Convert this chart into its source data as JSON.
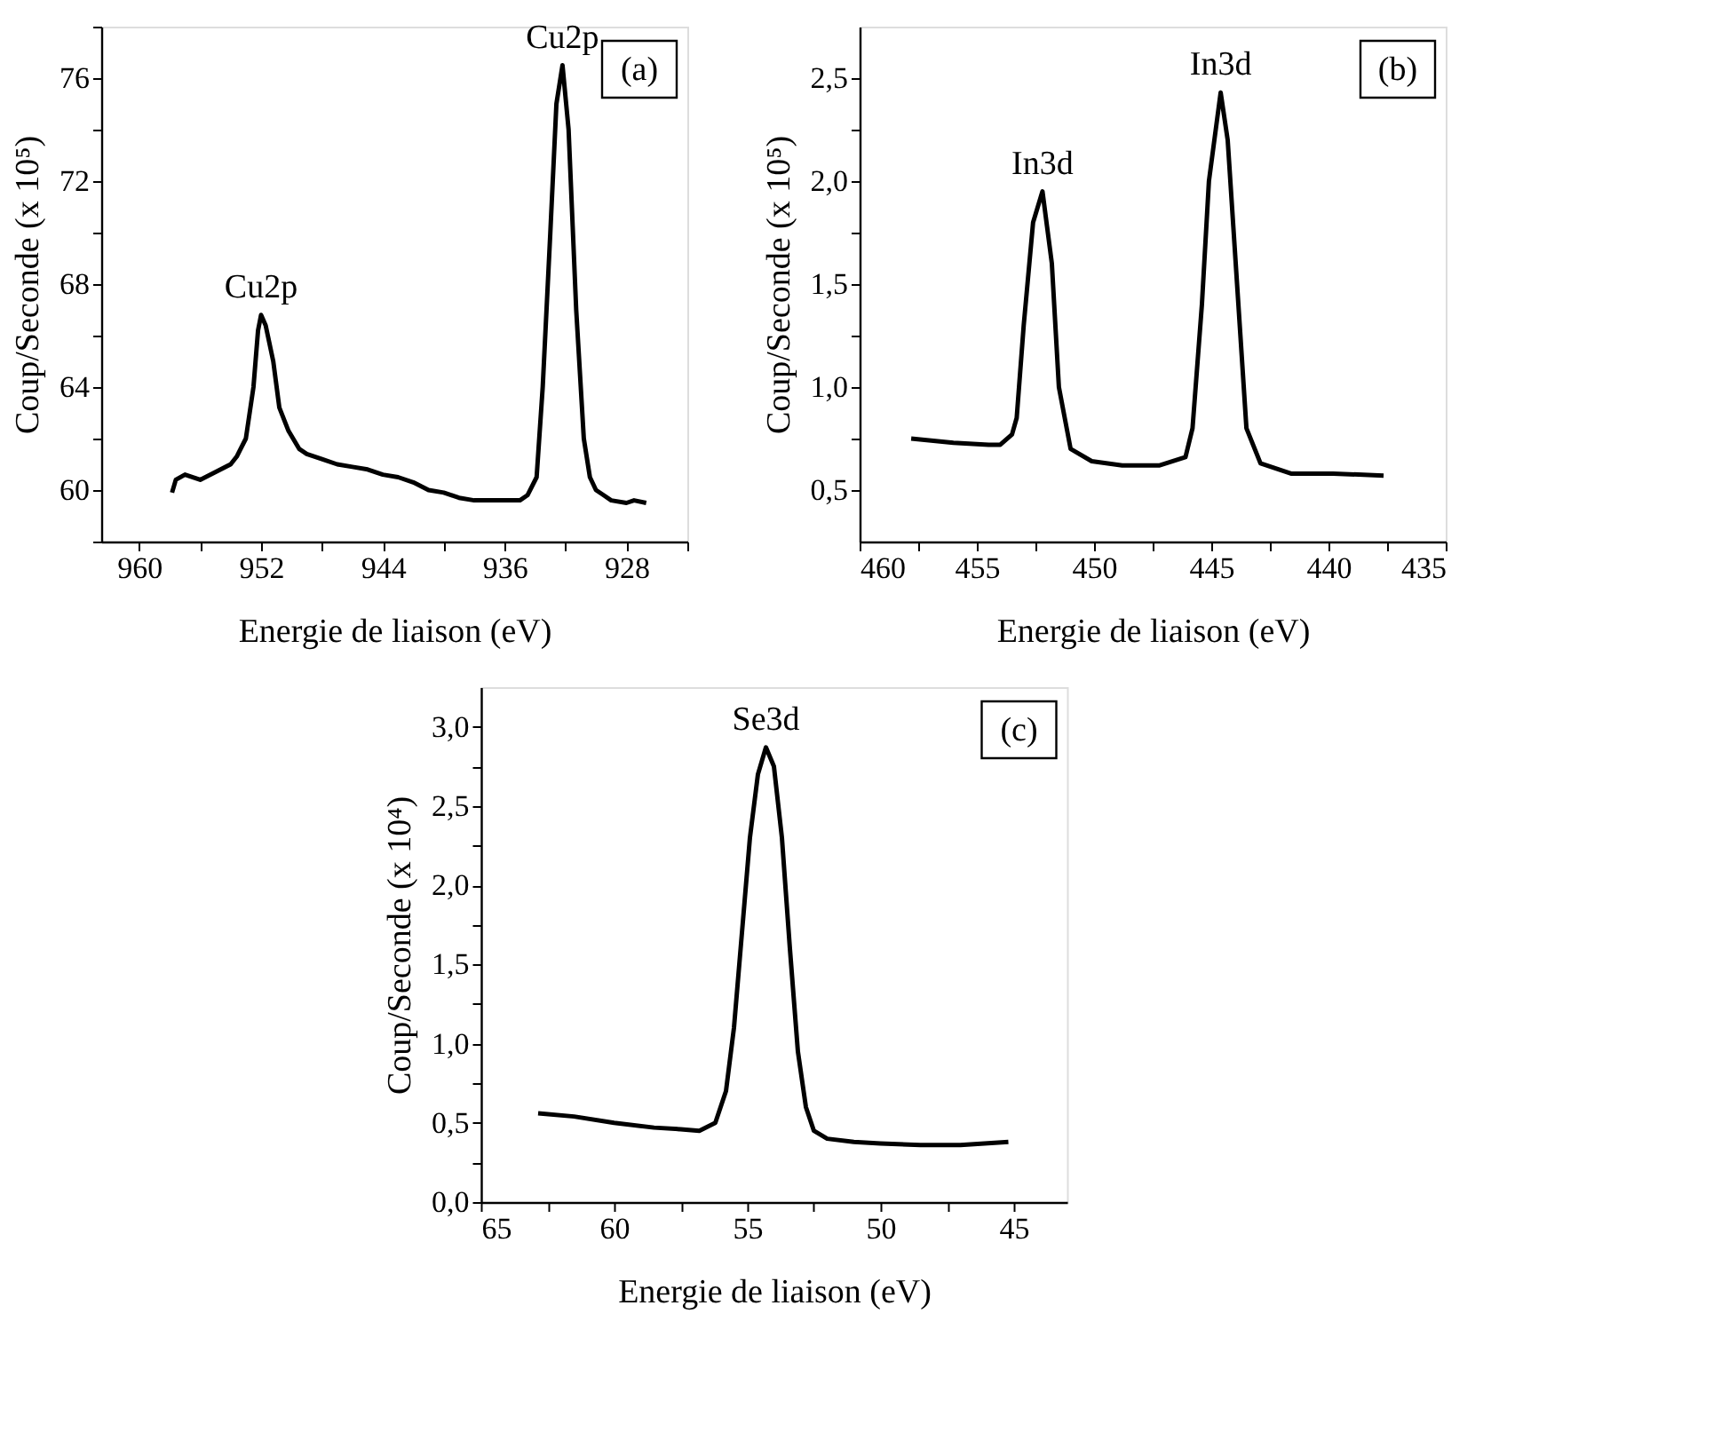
{
  "chart_data": [
    {
      "type": "line",
      "xlabel": "Energie de liaison (eV)",
      "ylabel": "Coup/Seconde (x 10⁵)",
      "xlim": [
        962.5,
        924
      ],
      "ylim": [
        58,
        78
      ],
      "xticks": [
        960,
        {
          "value": 956,
          "label": null
        },
        952,
        {
          "value": 948,
          "label": null
        },
        944,
        {
          "value": 940,
          "label": null
        },
        936,
        {
          "value": 932,
          "label": null
        },
        928,
        {
          "value": 924,
          "label": null
        }
      ],
      "yticks": [
        {
          "value": 58,
          "label": null
        },
        60,
        {
          "value": 62,
          "label": null
        },
        64,
        {
          "value": 66,
          "label": null
        },
        68,
        {
          "value": 70,
          "label": null
        },
        72,
        {
          "value": 74,
          "label": null
        },
        76,
        {
          "value": 78,
          "label": null
        }
      ],
      "grid": false,
      "legend": false,
      "marker": "none",
      "line_style": "solid",
      "series": [
        {
          "color": "#000000",
          "x": [
            957.85,
            957.6,
            957,
            956,
            955,
            954,
            953.6,
            953,
            952.5,
            952.2,
            952.0,
            951.7,
            951.2,
            950.8,
            950.2,
            949.5,
            949,
            948,
            947,
            946,
            945,
            944,
            943,
            942,
            941,
            940,
            939,
            938,
            937,
            936,
            935,
            934.5,
            933.9,
            933.5,
            933.0,
            932.6,
            932.2,
            931.8,
            931.3,
            930.8,
            930.4,
            930,
            929.5,
            929,
            928,
            927.5,
            926.7
          ],
          "values": [
            59.9,
            60.4,
            60.6,
            60.4,
            60.7,
            61.0,
            61.3,
            62.0,
            64.0,
            66.2,
            66.8,
            66.4,
            65.0,
            63.2,
            62.3,
            61.6,
            61.4,
            61.2,
            61.0,
            60.9,
            60.8,
            60.6,
            60.5,
            60.3,
            60.0,
            59.9,
            59.7,
            59.6,
            59.6,
            59.6,
            59.6,
            59.8,
            60.5,
            64.0,
            70.0,
            75.0,
            76.5,
            74.0,
            67.0,
            62.0,
            60.5,
            60.0,
            59.8,
            59.6,
            59.5,
            59.6,
            59.5
          ]
        }
      ],
      "annotations": [
        {
          "text": "Cu2p",
          "x": 952.0,
          "y": 66.8
        },
        {
          "text": "Cu2p",
          "x": 932.2,
          "y": 76.5
        },
        "(a)"
      ]
    },
    {
      "type": "line",
      "xlabel": "Energie de liaison (eV)",
      "ylabel": "Coup/Seconde (x 10⁵)",
      "xlim": [
        460,
        435
      ],
      "ylim": [
        0.25,
        2.75
      ],
      "xticks": [
        460,
        {
          "value": 457.5,
          "label": null
        },
        455,
        {
          "value": 452.5,
          "label": null
        },
        450,
        {
          "value": 447.5,
          "label": null
        },
        445,
        {
          "value": 442.5,
          "label": null
        },
        440,
        {
          "value": 437.5,
          "label": null
        },
        435
      ],
      "yticks": [
        {
          "value": 0.5,
          "label": "0,5"
        },
        {
          "value": 0.75,
          "label": null
        },
        {
          "value": 1.0,
          "label": "1,0"
        },
        {
          "value": 1.25,
          "label": null
        },
        {
          "value": 1.5,
          "label": "1,5"
        },
        {
          "value": 1.75,
          "label": null
        },
        {
          "value": 2.0,
          "label": "2,0"
        },
        {
          "value": 2.25,
          "label": null
        },
        {
          "value": 2.5,
          "label": "2,5"
        }
      ],
      "grid": false,
      "legend": false,
      "marker": "none",
      "line_style": "solid",
      "series": [
        {
          "color": "#000000",
          "x": [
            457.8,
            456,
            454.5,
            454,
            453.5,
            453.3,
            453.0,
            452.6,
            452.2,
            451.8,
            451.5,
            451.0,
            450.1,
            448.8,
            447.2,
            446.1,
            445.8,
            445.4,
            445.1,
            444.6,
            444.3,
            443.9,
            443.5,
            442.9,
            441.6,
            439.8,
            437.65
          ],
          "values": [
            0.75,
            0.73,
            0.72,
            0.72,
            0.77,
            0.85,
            1.3,
            1.8,
            1.95,
            1.6,
            1.0,
            0.7,
            0.64,
            0.62,
            0.62,
            0.66,
            0.8,
            1.4,
            2.0,
            2.43,
            2.2,
            1.5,
            0.8,
            0.63,
            0.58,
            0.58,
            0.57
          ]
        }
      ],
      "annotations": [
        {
          "text": "In3d",
          "x": 452.2,
          "y": 1.95
        },
        {
          "text": "In3d",
          "x": 444.6,
          "y": 2.43
        },
        "(b)"
      ]
    },
    {
      "type": "line",
      "xlabel": "Energie de liaison (eV)",
      "ylabel": "Coup/Seconde (x 10⁴)",
      "xlim": [
        65,
        43
      ],
      "ylim": [
        0,
        3.25
      ],
      "xticks": [
        65,
        {
          "value": 62.5,
          "label": null
        },
        60,
        {
          "value": 57.5,
          "label": null
        },
        55,
        {
          "value": 52.5,
          "label": null
        },
        50,
        {
          "value": 47.5,
          "label": null
        },
        45
      ],
      "yticks": [
        {
          "value": 0,
          "label": "0,0"
        },
        {
          "value": 0.25,
          "label": null
        },
        {
          "value": 0.5,
          "label": "0,5"
        },
        {
          "value": 0.75,
          "label": null
        },
        {
          "value": 1.0,
          "label": "1,0"
        },
        {
          "value": 1.25,
          "label": null
        },
        {
          "value": 1.5,
          "label": "1,5"
        },
        {
          "value": 1.75,
          "label": null
        },
        {
          "value": 2.0,
          "label": "2,0"
        },
        {
          "value": 2.25,
          "label": null
        },
        {
          "value": 2.5,
          "label": "2,5"
        },
        {
          "value": 2.75,
          "label": null
        },
        {
          "value": 3.0,
          "label": "3,0"
        }
      ],
      "grid": false,
      "legend": false,
      "marker": "none",
      "line_style": "solid",
      "series": [
        {
          "color": "#000000",
          "x": [
            62.85,
            61.5,
            60,
            58.5,
            57.5,
            56.8,
            56.2,
            55.8,
            55.5,
            55.2,
            54.9,
            54.6,
            54.3,
            54.0,
            53.7,
            53.4,
            53.1,
            52.8,
            52.5,
            52.0,
            51,
            50,
            48.5,
            47,
            45.2
          ],
          "values": [
            0.56,
            0.54,
            0.5,
            0.47,
            0.46,
            0.45,
            0.5,
            0.7,
            1.1,
            1.7,
            2.3,
            2.7,
            2.87,
            2.75,
            2.3,
            1.6,
            0.95,
            0.6,
            0.45,
            0.4,
            0.38,
            0.37,
            0.36,
            0.36,
            0.38
          ]
        }
      ],
      "annotations": [
        {
          "text": "Se3d",
          "x": 54.3,
          "y": 2.87
        },
        "(c)"
      ]
    }
  ]
}
